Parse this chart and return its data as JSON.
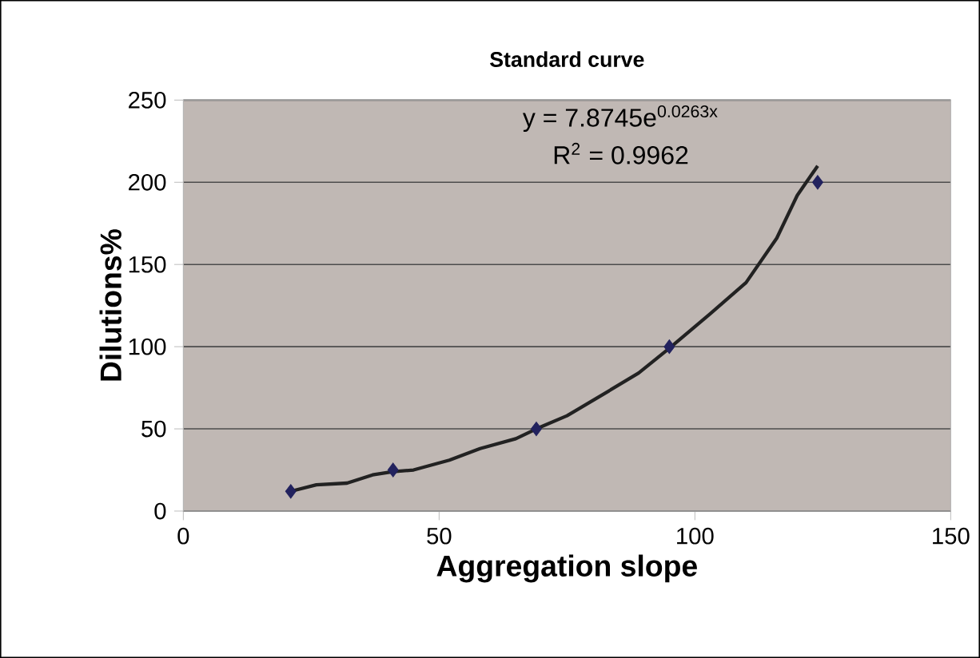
{
  "chart_data": {
    "type": "scatter",
    "title": "Standard curve",
    "xlabel": "Aggregation slope",
    "ylabel": "Dilutions%",
    "xlim": [
      0,
      150
    ],
    "xticks": [
      0,
      50,
      100,
      150
    ],
    "ylim": [
      0,
      250
    ],
    "yticks": [
      0,
      50,
      100,
      150,
      200,
      250
    ],
    "grid": "y",
    "series": [
      {
        "color": "#22225e",
        "marker": "diamond",
        "x": [
          21,
          41,
          69,
          95,
          124
        ],
        "values": [
          12,
          25,
          50,
          100,
          200
        ]
      },
      {
        "type": "line",
        "color": "#222222",
        "line_style": "solid",
        "marker": "none",
        "x": [
          21,
          26,
          32,
          37,
          41,
          45,
          52,
          58,
          65,
          69,
          75,
          81,
          89,
          95,
          103,
          110,
          116,
          120,
          124
        ],
        "values": [
          12,
          16,
          17,
          22,
          24,
          25,
          31,
          38,
          44,
          50,
          58,
          69,
          84,
          99,
          120,
          139,
          166,
          192,
          210
        ]
      }
    ],
    "annotations": [
      "y = 7.8745e$^{0.0263x}$",
      "R$^{2}$ = 0.9962"
    ]
  }
}
